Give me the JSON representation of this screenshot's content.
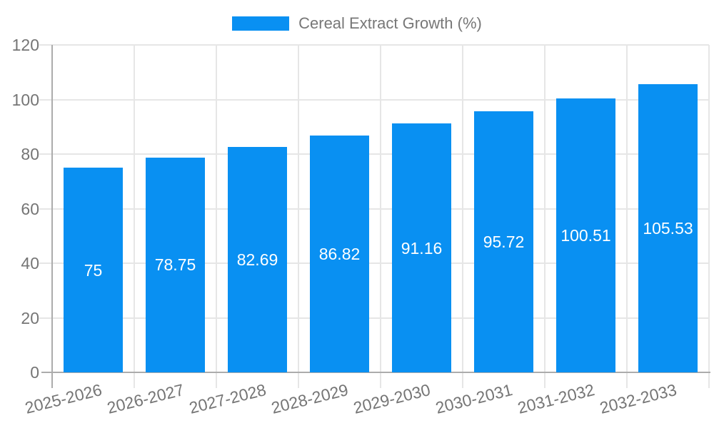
{
  "legend": {
    "label": "Cereal Extract Growth (%)"
  },
  "colors": {
    "bar": "#0990F2",
    "grid": "#E6E6E6",
    "axis": "#ACACAC",
    "tick_text": "#757575",
    "legend_text": "#777777",
    "value_label": "#FFFFFF",
    "background": "#FFFFFF"
  },
  "chart_data": {
    "type": "bar",
    "title": "Cereal Extract Growth (%)",
    "categories": [
      "2025-2026",
      "2026-2027",
      "2027-2028",
      "2028-2029",
      "2029-2030",
      "2030-2031",
      "2031-2032",
      "2032-2033"
    ],
    "series": [
      {
        "name": "Cereal Extract Growth (%)",
        "color": "#0990F2",
        "values": [
          75,
          78.75,
          82.69,
          86.82,
          91.16,
          95.72,
          100.51,
          105.53
        ]
      }
    ],
    "value_labels": [
      "75",
      "78.75",
      "82.69",
      "86.82",
      "91.16",
      "95.72",
      "100.51",
      "105.53"
    ],
    "value_label_position": "inside-middle",
    "xlabel": "",
    "ylabel": "",
    "ylim": [
      0,
      120
    ],
    "yticks": [
      0,
      20,
      40,
      60,
      80,
      100,
      120
    ],
    "grid": true,
    "legend_position": "top-center",
    "x_tick_rotation_deg": -14
  }
}
